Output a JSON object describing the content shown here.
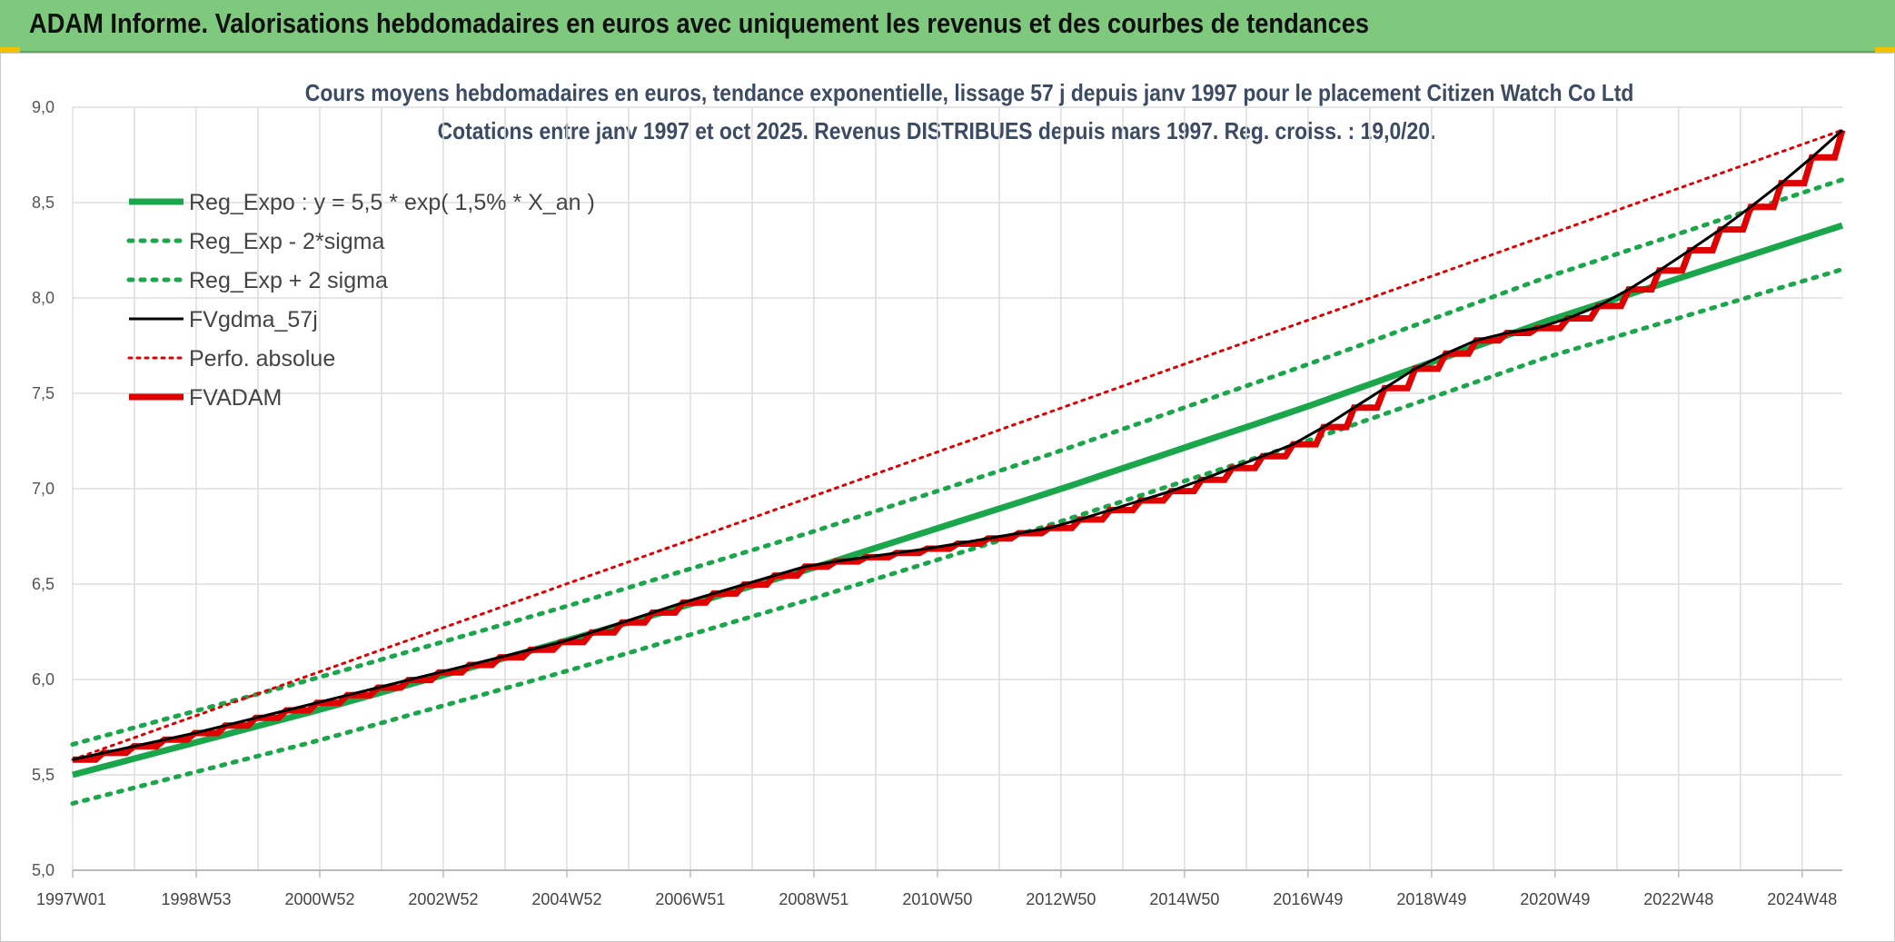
{
  "banner": {
    "title": "ADAM Informe. Valorisations hebdomadaires en euros avec uniquement les revenus et des courbes de tendances"
  },
  "colors": {
    "banner_bg": "#7fc97f",
    "reg_expo": "#1aa64a",
    "band": "#1aa64a",
    "fvgdma": "#000000",
    "perfo": "#e00000",
    "fvadam": "#e00000",
    "grid": "#dddddd"
  },
  "chart_data": {
    "type": "line",
    "title": "Cours moyens hebdomadaires en euros, tendance exponentielle, lissage 57 j depuis janv 1997 pour le placement Citizen Watch Co Ltd",
    "subtitle": "Cotations entre janv 1997 et oct 2025. Revenus DISTRIBUES depuis mars 1997. Reg. croiss. : 19,0/20.",
    "xlabel": "",
    "ylabel": "",
    "ylim": [
      5.0,
      9.0
    ],
    "y_ticks": [
      "5,0",
      "5,5",
      "6,0",
      "6,5",
      "7,0",
      "7,5",
      "8,0",
      "8,5",
      "9,0"
    ],
    "x_ticks": [
      "1997W01",
      "1998W53",
      "2000W52",
      "2002W52",
      "2004W52",
      "2006W51",
      "2008W51",
      "2010W50",
      "2012W50",
      "2014W50",
      "2016W49",
      "2018W49",
      "2020W49",
      "2022W48",
      "2024W48"
    ],
    "x_range_years": [
      1997.0,
      2025.8
    ],
    "grid": true,
    "legend_position": "top-left",
    "series": [
      {
        "name": "Reg_Expo : y = 5,5 * exp( 1,5% *  X_an )",
        "style": "solid-thick",
        "color": "#1aa64a",
        "x": [
          1997.0,
          2001.0,
          2005.0,
          2009.0,
          2013.0,
          2017.0,
          2021.0,
          2025.8
        ],
        "y": [
          5.5,
          5.84,
          6.2,
          6.58,
          6.99,
          7.42,
          7.88,
          8.38
        ]
      },
      {
        "name": "Reg_Exp - 2*sigma",
        "style": "dotted",
        "color": "#1aa64a",
        "x": [
          1997.0,
          2001.0,
          2005.0,
          2009.0,
          2013.0,
          2017.0,
          2021.0,
          2025.8
        ],
        "y": [
          5.35,
          5.68,
          6.04,
          6.42,
          6.82,
          7.24,
          7.69,
          8.15
        ]
      },
      {
        "name": "Reg_Exp + 2 sigma",
        "style": "dotted",
        "color": "#1aa64a",
        "x": [
          1997.0,
          2001.0,
          2005.0,
          2009.0,
          2013.0,
          2017.0,
          2021.0,
          2025.8
        ],
        "y": [
          5.66,
          6.01,
          6.38,
          6.77,
          7.19,
          7.64,
          8.11,
          8.62
        ]
      },
      {
        "name": "FVgdma_57j",
        "style": "solid-thin",
        "color": "#000000",
        "x": [
          1997.0,
          1999.0,
          2001.0,
          2003.0,
          2005.0,
          2007.0,
          2009.0,
          2011.0,
          2013.0,
          2015.0,
          2017.0,
          2019.0,
          2020.0,
          2021.0,
          2022.0,
          2023.0,
          2024.0,
          2025.0,
          2025.8
        ],
        "y": [
          5.58,
          5.72,
          5.88,
          6.04,
          6.2,
          6.41,
          6.6,
          6.69,
          6.8,
          7.0,
          7.25,
          7.66,
          7.8,
          7.85,
          7.98,
          8.18,
          8.4,
          8.65,
          8.88
        ]
      },
      {
        "name": "Perfo. absolue",
        "style": "dotted-thin",
        "color": "#e00000",
        "x": [
          1997.0,
          2025.8
        ],
        "y": [
          5.58,
          8.88
        ]
      },
      {
        "name": "FVADAM",
        "style": "solid-thick-step",
        "color": "#e00000",
        "x": [
          1997.0,
          1999.0,
          2001.0,
          2003.0,
          2005.0,
          2007.0,
          2009.0,
          2011.0,
          2013.0,
          2015.0,
          2017.0,
          2019.0,
          2020.0,
          2021.0,
          2022.0,
          2023.0,
          2024.0,
          2025.0,
          2025.8
        ],
        "y": [
          5.58,
          5.72,
          5.88,
          6.04,
          6.2,
          6.41,
          6.6,
          6.69,
          6.8,
          7.0,
          7.25,
          7.66,
          7.8,
          7.85,
          7.98,
          8.18,
          8.4,
          8.65,
          8.88
        ]
      }
    ]
  }
}
